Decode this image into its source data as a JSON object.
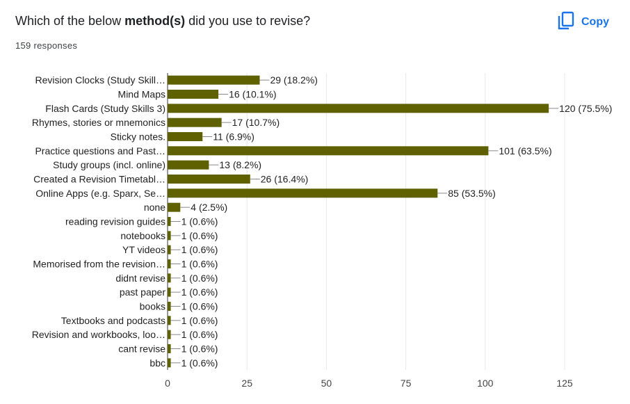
{
  "question": {
    "prefix": "Which of the below",
    "bold": "method(s)",
    "suffix": "did you use to revise?"
  },
  "responses_label": "159 responses",
  "copy_button": {
    "label": "Copy",
    "icon": "copy-icon"
  },
  "colors": {
    "bar": "#5f6000",
    "accent": "#1a73e8",
    "grid": "#e8e8e8",
    "axis": "#333333"
  },
  "chart_data": {
    "type": "bar",
    "orientation": "horizontal",
    "categories": [
      "Revision Clocks (Study Skill…",
      "Mind Maps",
      "Flash Cards (Study Skills 3)",
      "Rhymes, stories or mnemonics",
      "Sticky notes.",
      "Practice questions and Past…",
      "Study groups (incl. online)",
      "Created a Revision Timetabl…",
      "Online Apps (e.g. Sparx, Se…",
      "none",
      "reading revision guides",
      "notebooks",
      "YT videos",
      "Memorised from the revision…",
      "didnt revise",
      "past paper",
      "books",
      "Textbooks and podcasts",
      "Revision and workbooks, loo…",
      "cant revise",
      "bbc"
    ],
    "values": [
      29,
      16,
      120,
      17,
      11,
      101,
      13,
      26,
      85,
      4,
      1,
      1,
      1,
      1,
      1,
      1,
      1,
      1,
      1,
      1,
      1
    ],
    "data_labels": [
      "29 (18.2%)",
      "16 (10.1%)",
      "120 (75.5%)",
      "17 (10.7%)",
      "11 (6.9%)",
      "101 (63.5%)",
      "13 (8.2%)",
      "26 (16.4%)",
      "85 (53.5%)",
      "4 (2.5%)",
      "1 (0.6%)",
      "1 (0.6%)",
      "1 (0.6%)",
      "1 (0.6%)",
      "1 (0.6%)",
      "1 (0.6%)",
      "1 (0.6%)",
      "1 (0.6%)",
      "1 (0.6%)",
      "1 (0.6%)",
      "1 (0.6%)"
    ],
    "xlim": [
      0,
      125
    ],
    "xticks": [
      "0",
      "25",
      "50",
      "75",
      "100",
      "125"
    ],
    "grid": true
  }
}
